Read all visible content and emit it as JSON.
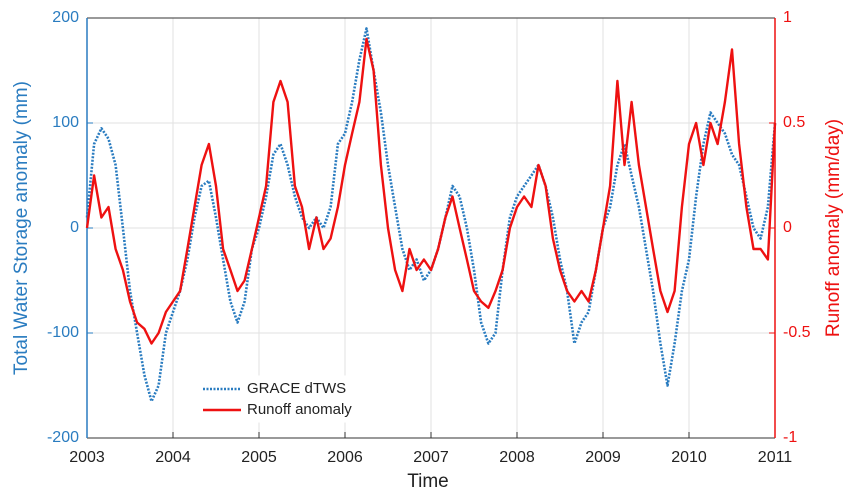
{
  "chart_data": {
    "type": "line",
    "xlabel": "Time",
    "ylabel": "Total Water Storage anomaly (mm)",
    "y2label": "Runoff anomaly  (mm/day)",
    "xlim": [
      2003,
      2011
    ],
    "xticks": [
      2003,
      2004,
      2005,
      2006,
      2007,
      2008,
      2009,
      2010,
      2011
    ],
    "ylim": [
      -200,
      200
    ],
    "yticks": [
      -200,
      -100,
      0,
      100,
      200
    ],
    "y2lim": [
      -1,
      1
    ],
    "y2ticks": [
      -1,
      -0.5,
      0,
      0.5,
      1
    ],
    "grid": true,
    "legend": "lower left",
    "x": [
      2003,
      2003.083,
      2003.167,
      2003.25,
      2003.333,
      2003.417,
      2003.5,
      2003.583,
      2003.667,
      2003.75,
      2003.833,
      2003.917,
      2004,
      2004.083,
      2004.167,
      2004.25,
      2004.333,
      2004.417,
      2004.5,
      2004.583,
      2004.667,
      2004.75,
      2004.833,
      2004.917,
      2005,
      2005.083,
      2005.167,
      2005.25,
      2005.333,
      2005.417,
      2005.5,
      2005.583,
      2005.667,
      2005.75,
      2005.833,
      2005.917,
      2006,
      2006.083,
      2006.167,
      2006.25,
      2006.333,
      2006.417,
      2006.5,
      2006.583,
      2006.667,
      2006.75,
      2006.833,
      2006.917,
      2007,
      2007.083,
      2007.167,
      2007.25,
      2007.333,
      2007.417,
      2007.5,
      2007.583,
      2007.667,
      2007.75,
      2007.833,
      2007.917,
      2008,
      2008.083,
      2008.167,
      2008.25,
      2008.333,
      2008.417,
      2008.5,
      2008.583,
      2008.667,
      2008.75,
      2008.833,
      2008.917,
      2009,
      2009.083,
      2009.167,
      2009.25,
      2009.333,
      2009.417,
      2009.5,
      2009.583,
      2009.667,
      2009.75,
      2009.833,
      2009.917,
      2010,
      2010.083,
      2010.167,
      2010.25,
      2010.333,
      2010.417,
      2010.5,
      2010.583,
      2010.667,
      2010.75,
      2010.833,
      2010.917,
      2011
    ],
    "series": [
      {
        "name": "GRACE dTWS",
        "color": "#2a7cc0",
        "line_style": "dotted",
        "axis": "y",
        "values": [
          10,
          80,
          95,
          85,
          60,
          0,
          -60,
          -100,
          -140,
          -165,
          -150,
          -100,
          -80,
          -60,
          -30,
          10,
          40,
          45,
          10,
          -30,
          -70,
          -90,
          -70,
          -20,
          0,
          30,
          70,
          80,
          60,
          30,
          10,
          0,
          10,
          0,
          20,
          80,
          90,
          120,
          160,
          190,
          150,
          110,
          60,
          20,
          -20,
          -40,
          -30,
          -50,
          -40,
          -20,
          10,
          40,
          30,
          0,
          -40,
          -90,
          -110,
          -100,
          -40,
          10,
          30,
          40,
          50,
          60,
          40,
          10,
          -30,
          -60,
          -110,
          -90,
          -80,
          -40,
          0,
          20,
          60,
          80,
          50,
          20,
          -20,
          -60,
          -110,
          -150,
          -110,
          -60,
          -30,
          30,
          80,
          110,
          100,
          90,
          70,
          60,
          30,
          0,
          -10,
          20,
          100
        ]
      },
      {
        "name": "Runoff anomaly",
        "color": "#ee1111",
        "line_style": "solid",
        "axis": "y2",
        "values": [
          0,
          0.25,
          0.05,
          0.1,
          -0.1,
          -0.2,
          -0.35,
          -0.45,
          -0.48,
          -0.55,
          -0.5,
          -0.4,
          -0.35,
          -0.3,
          -0.1,
          0.1,
          0.3,
          0.4,
          0.2,
          -0.1,
          -0.2,
          -0.3,
          -0.25,
          -0.1,
          0.05,
          0.2,
          0.6,
          0.7,
          0.6,
          0.2,
          0.1,
          -0.1,
          0.05,
          -0.1,
          -0.05,
          0.1,
          0.3,
          0.45,
          0.6,
          0.9,
          0.75,
          0.3,
          0,
          -0.2,
          -0.3,
          -0.1,
          -0.2,
          -0.15,
          -0.2,
          -0.1,
          0.05,
          0.15,
          0,
          -0.15,
          -0.3,
          -0.35,
          -0.38,
          -0.3,
          -0.2,
          0,
          0.1,
          0.15,
          0.1,
          0.3,
          0.2,
          -0.05,
          -0.2,
          -0.3,
          -0.35,
          -0.3,
          -0.35,
          -0.2,
          0,
          0.2,
          0.7,
          0.3,
          0.6,
          0.3,
          0.1,
          -0.1,
          -0.3,
          -0.4,
          -0.3,
          0.1,
          0.4,
          0.5,
          0.3,
          0.5,
          0.4,
          0.6,
          0.85,
          0.4,
          0.1,
          -0.1,
          -0.1,
          -0.15,
          0.5
        ]
      }
    ]
  }
}
